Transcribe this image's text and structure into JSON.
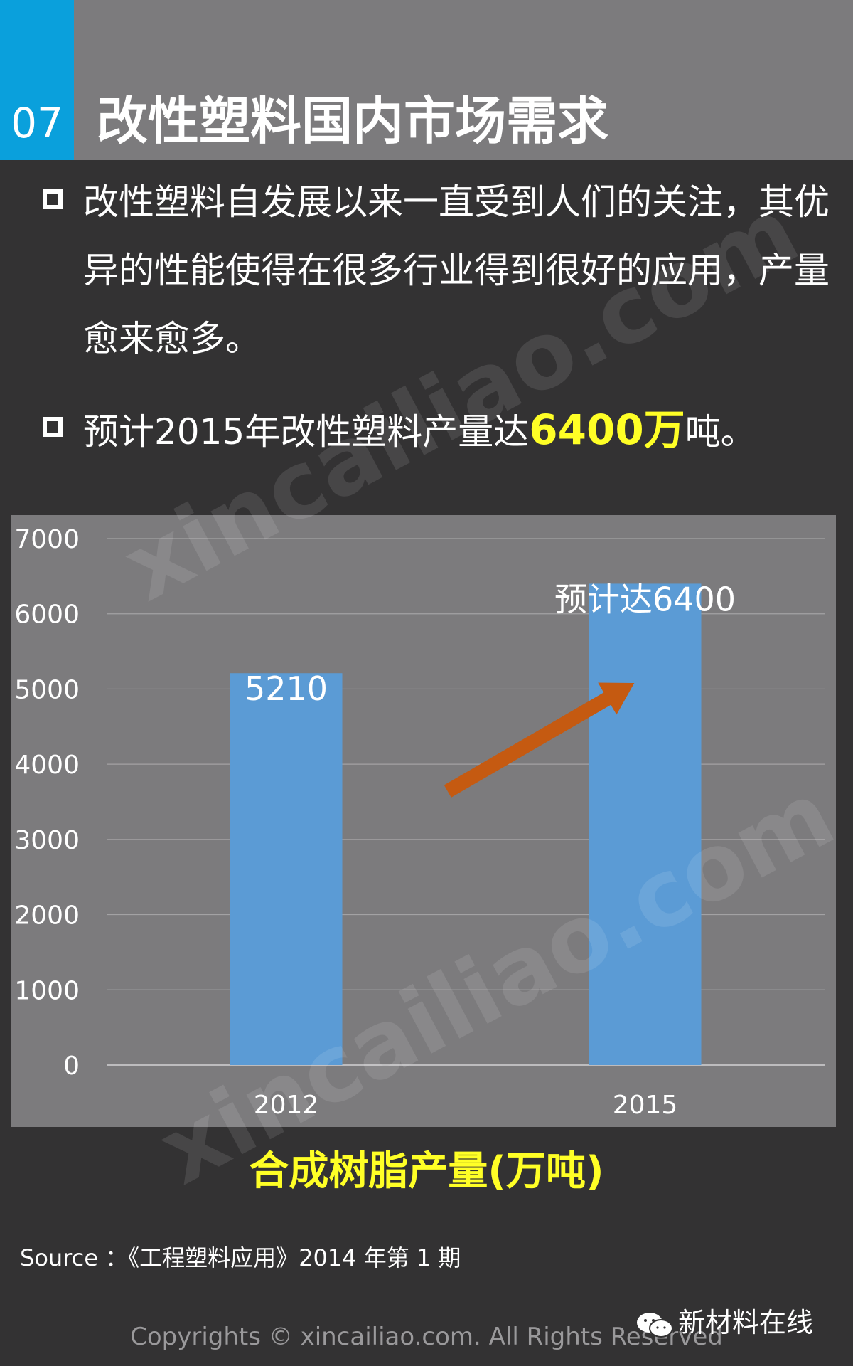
{
  "header": {
    "number": "07",
    "title": "改性塑料国内市场需求"
  },
  "bullets": [
    {
      "text": "改性塑料自发展以来一直受到人们的关注，其优异的性能使得在很多行业得到很好的应用，产量愈来愈多。"
    },
    {
      "prefix": "预计2015年改性塑料产量达",
      "highlight": "6400万",
      "suffix": "吨。"
    }
  ],
  "colors": {
    "accent": "#0aa0dc",
    "highlight": "#ffff26",
    "bar": "#5b9bd5",
    "arrow": "#c55a11",
    "panel": "#7c7b7d",
    "background": "#333233"
  },
  "chart_data": {
    "type": "bar",
    "categories": [
      "2012",
      "2015"
    ],
    "values": [
      5210,
      6400
    ],
    "data_labels": [
      "5210",
      "预计达6400"
    ],
    "yticks": [
      "0",
      "1000",
      "2000",
      "3000",
      "4000",
      "5000",
      "6000",
      "7000"
    ],
    "ylim": [
      0,
      7000
    ],
    "grid": true,
    "annotation": "arrow-up-right",
    "title": "合成树脂产量(万吨)"
  },
  "source": "Source ：《工程塑料应用》2014 年第 1 期",
  "logo": {
    "text": "新材料在线",
    "icon": "wechat-icon"
  },
  "copyright": "Copyrights © xincailiao.com. All Rights Reserved",
  "watermark": "xincailiao.com"
}
